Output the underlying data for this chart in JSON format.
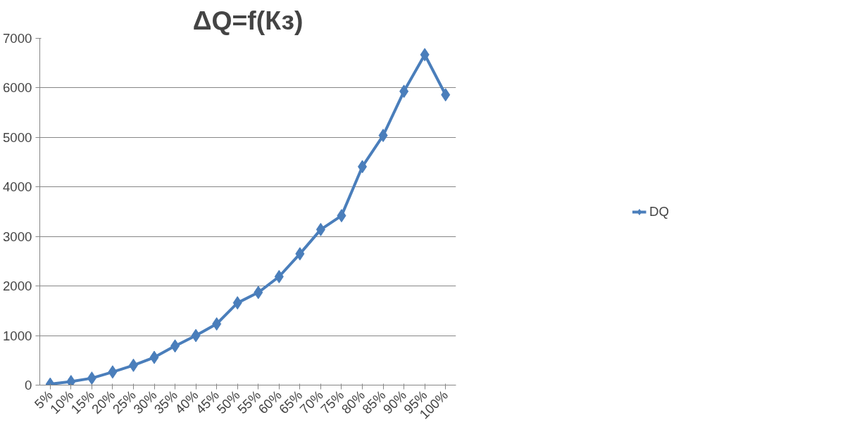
{
  "chart_data": {
    "type": "line",
    "title": "ΔQ=f(Кз)",
    "categories": [
      "5%",
      "10%",
      "15%",
      "20%",
      "25%",
      "30%",
      "35%",
      "40%",
      "45%",
      "50%",
      "55%",
      "60%",
      "65%",
      "70%",
      "75%",
      "80%",
      "85%",
      "90%",
      "95%",
      "100%"
    ],
    "series": [
      {
        "name": "DQ",
        "color": "#4a7ebb",
        "values": [
          20,
          70,
          140,
          265,
          400,
          560,
          790,
          1000,
          1235,
          1660,
          1870,
          2190,
          2650,
          3140,
          3420,
          4410,
          5040,
          5930,
          6670,
          5860
        ]
      }
    ],
    "ylim": [
      0,
      7000
    ],
    "yticks": [
      0,
      1000,
      2000,
      3000,
      4000,
      5000,
      6000,
      7000
    ],
    "grid": "y",
    "legend": "right",
    "marker": "diamond",
    "line_style": "solid"
  }
}
